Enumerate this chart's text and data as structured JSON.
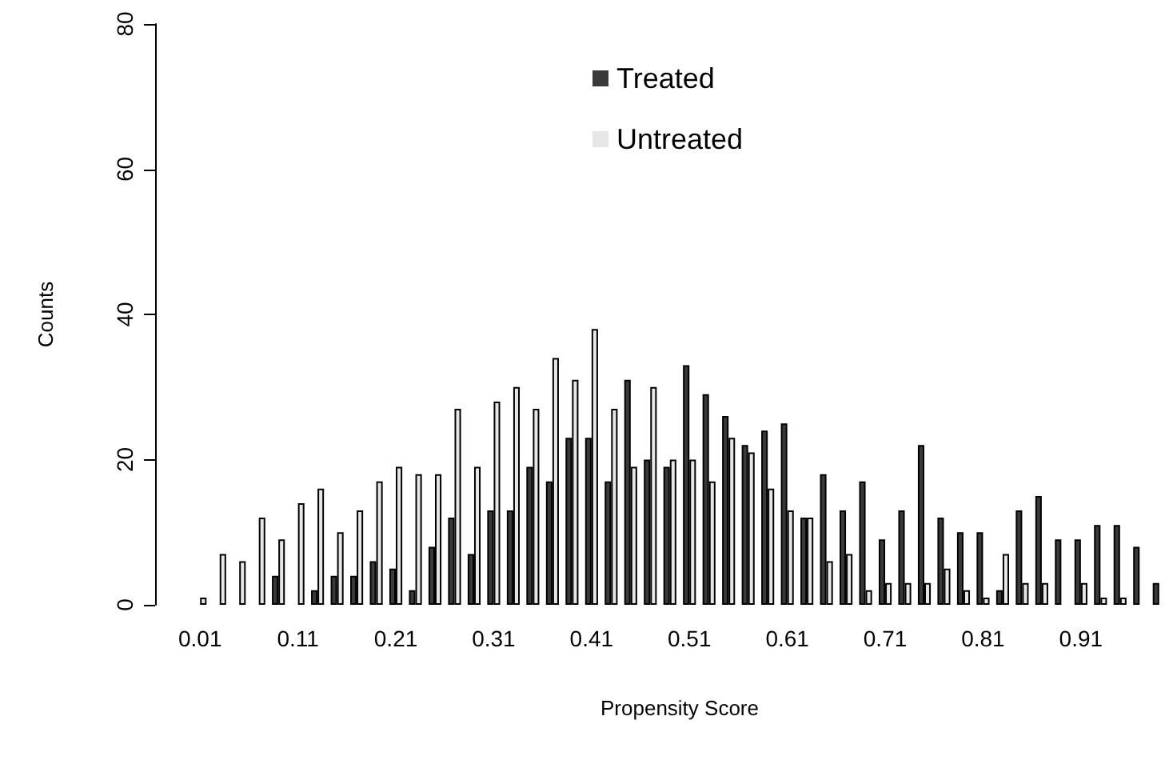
{
  "chart_data": {
    "type": "bar",
    "xlabel": "Propensity Score",
    "ylabel": "Counts",
    "categories": [
      "0.01",
      null,
      null,
      null,
      null,
      "0.11",
      null,
      null,
      null,
      null,
      "0.21",
      null,
      null,
      null,
      null,
      "0.31",
      null,
      null,
      null,
      null,
      "0.41",
      null,
      null,
      null,
      null,
      "0.51",
      null,
      null,
      null,
      null,
      "0.61",
      null,
      null,
      null,
      null,
      "0.71",
      null,
      null,
      null,
      null,
      "0.81",
      null,
      null,
      null,
      null,
      "0.91",
      null,
      null,
      null,
      null
    ],
    "series": [
      {
        "name": "Treated",
        "color": "#3a3a3a",
        "values": [
          0,
          0,
          0,
          0,
          4,
          0,
          2,
          4,
          4,
          6,
          5,
          2,
          8,
          12,
          7,
          13,
          13,
          19,
          17,
          23,
          23,
          17,
          31,
          20,
          19,
          33,
          29,
          26,
          22,
          24,
          25,
          12,
          18,
          13,
          17,
          9,
          13,
          22,
          12,
          10,
          10,
          2,
          13,
          15,
          9,
          9,
          11,
          11,
          8,
          3
        ]
      },
      {
        "name": "Untreated",
        "color": "#e6e6e6",
        "values": [
          1,
          7,
          6,
          12,
          9,
          14,
          16,
          10,
          13,
          17,
          19,
          18,
          18,
          27,
          19,
          28,
          30,
          27,
          34,
          31,
          38,
          27,
          19,
          30,
          20,
          20,
          17,
          23,
          21,
          16,
          13,
          12,
          6,
          7,
          2,
          3,
          3,
          3,
          5,
          2,
          1,
          7,
          3,
          3,
          0,
          3,
          1,
          1,
          0,
          null
        ]
      }
    ],
    "ylim": [
      0,
      80
    ],
    "yticks": [
      0,
      20,
      40,
      60,
      80
    ],
    "grid": false,
    "legend": "top"
  }
}
